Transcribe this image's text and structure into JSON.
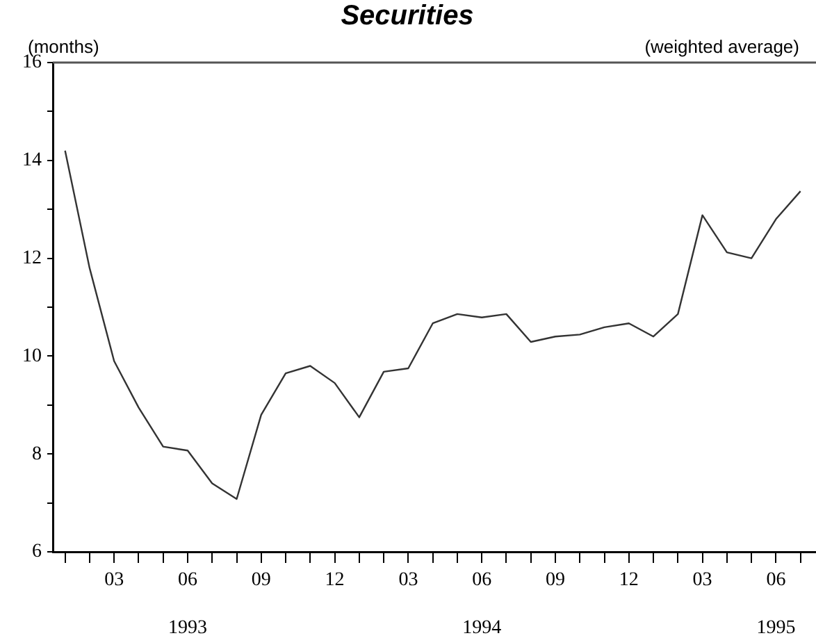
{
  "chart_data": {
    "type": "line",
    "title": "Securities",
    "subtitle": "(weighted average)",
    "ylabel": "(months)",
    "x": [
      "1993-01",
      "1993-02",
      "1993-03",
      "1993-04",
      "1993-05",
      "1993-06",
      "1993-07",
      "1993-08",
      "1993-09",
      "1993-10",
      "1993-11",
      "1993-12",
      "1994-01",
      "1994-02",
      "1994-03",
      "1994-04",
      "1994-05",
      "1994-06",
      "1994-07",
      "1994-08",
      "1994-09",
      "1994-10",
      "1994-11",
      "1994-12",
      "1995-01",
      "1995-02",
      "1995-03",
      "1995-04",
      "1995-05",
      "1995-06",
      "1995-07"
    ],
    "series": [
      {
        "color": "#333333",
        "values": [
          14.2,
          11.8,
          9.9,
          8.95,
          8.15,
          8.07,
          7.4,
          7.08,
          8.8,
          9.65,
          9.8,
          9.45,
          8.75,
          9.68,
          9.75,
          10.67,
          10.86,
          10.79,
          10.86,
          10.29,
          10.4,
          10.44,
          10.59,
          10.67,
          10.4,
          10.86,
          12.88,
          12.12,
          12.0,
          12.8,
          13.37
        ]
      }
    ],
    "xlim": [
      "1992-12-16",
      "1995-07-20"
    ],
    "xticks": [
      {
        "value": "1993-01",
        "label": null
      },
      {
        "value": "1993-02",
        "label": null
      },
      {
        "value": "1993-03",
        "label": "03"
      },
      {
        "value": "1993-04",
        "label": null
      },
      {
        "value": "1993-05",
        "label": null
      },
      {
        "value": "1993-06",
        "label": "06"
      },
      {
        "value": "1993-07",
        "label": null
      },
      {
        "value": "1993-08",
        "label": null
      },
      {
        "value": "1993-09",
        "label": "09"
      },
      {
        "value": "1993-10",
        "label": null
      },
      {
        "value": "1993-11",
        "label": null
      },
      {
        "value": "1993-12",
        "label": "12"
      },
      {
        "value": "1994-01",
        "label": null
      },
      {
        "value": "1994-02",
        "label": null
      },
      {
        "value": "1994-03",
        "label": "03"
      },
      {
        "value": "1994-04",
        "label": null
      },
      {
        "value": "1994-05",
        "label": null
      },
      {
        "value": "1994-06",
        "label": "06"
      },
      {
        "value": "1994-07",
        "label": null
      },
      {
        "value": "1994-08",
        "label": null
      },
      {
        "value": "1994-09",
        "label": "09"
      },
      {
        "value": "1994-10",
        "label": null
      },
      {
        "value": "1994-11",
        "label": null
      },
      {
        "value": "1994-12",
        "label": "12"
      },
      {
        "value": "1995-01",
        "label": null
      },
      {
        "value": "1995-02",
        "label": null
      },
      {
        "value": "1995-03",
        "label": "03"
      },
      {
        "value": "1995-04",
        "label": null
      },
      {
        "value": "1995-05",
        "label": null
      },
      {
        "value": "1995-06",
        "label": "06"
      },
      {
        "value": "1995-07",
        "label": null
      }
    ],
    "ylim": [
      6,
      16
    ],
    "yticks": [
      6,
      {
        "value": 7,
        "label": null
      },
      8,
      {
        "value": 9,
        "label": null
      },
      10,
      {
        "value": 11,
        "label": null
      },
      12,
      {
        "value": 13,
        "label": null
      },
      14,
      {
        "value": 15,
        "label": null
      },
      16
    ],
    "annotations": [
      "1993",
      "1994",
      "1995"
    ],
    "grid": false,
    "legend": false,
    "marker": "none",
    "line_style": "solid"
  }
}
